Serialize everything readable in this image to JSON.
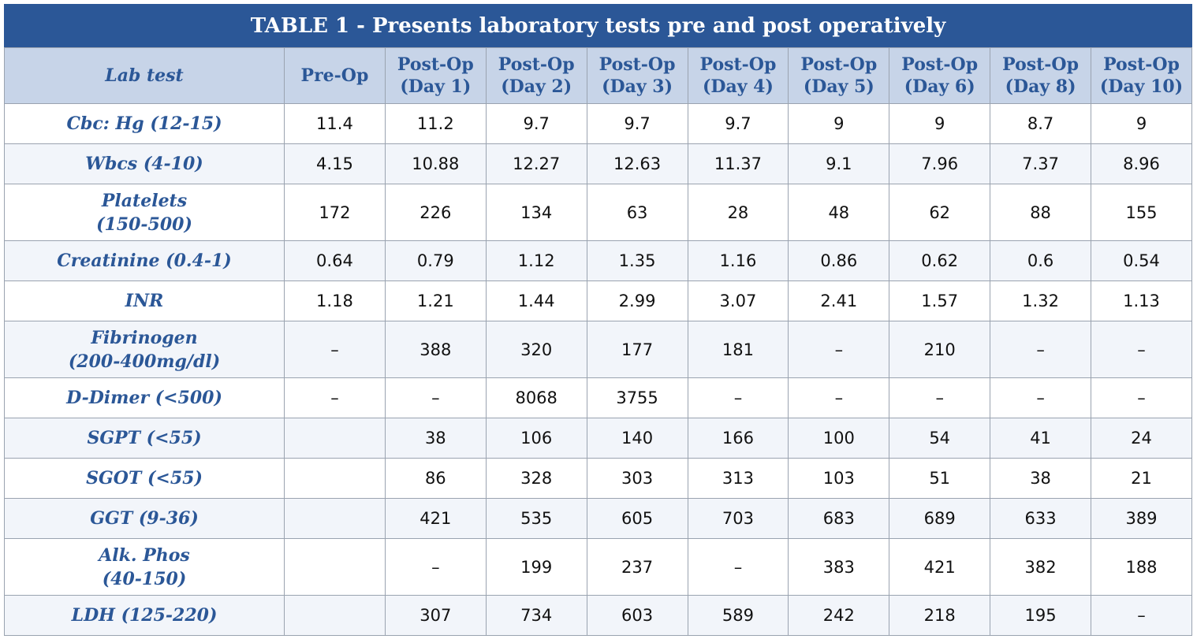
{
  "table": {
    "title": "TABLE 1 - Presents laboratory tests pre and post operatively",
    "header": [
      "Lab test",
      "Pre-Op",
      "Post-Op\n(Day 1)",
      "Post-Op\n(Day 2)",
      "Post-Op\n(Day 3)",
      "Post-Op\n(Day 4)",
      "Post-Op\n(Day 5)",
      "Post-Op\n(Day 6)",
      "Post-Op\n(Day 8)",
      "Post-Op\n(Day 10)"
    ],
    "rows": [
      [
        "Cbc: Hg (12-15)",
        "11.4",
        "11.2",
        "9.7",
        "9.7",
        "9.7",
        "9",
        "9",
        "8.7",
        "9"
      ],
      [
        "Wbcs (4-10)",
        "4.15",
        "10.88",
        "12.27",
        "12.63",
        "11.37",
        "9.1",
        "7.96",
        "7.37",
        "8.96"
      ],
      [
        "Platelets\n(150-500)",
        "172",
        "226",
        "134",
        "63",
        "28",
        "48",
        "62",
        "88",
        "155"
      ],
      [
        "Creatinine (0.4-1)",
        "0.64",
        "0.79",
        "1.12",
        "1.35",
        "1.16",
        "0.86",
        "0.62",
        "0.6",
        "0.54"
      ],
      [
        "INR",
        "1.18",
        "1.21",
        "1.44",
        "2.99",
        "3.07",
        "2.41",
        "1.57",
        "1.32",
        "1.13"
      ],
      [
        "Fibrinogen\n(200-400mg/dl)",
        "–",
        "388",
        "320",
        "177",
        "181",
        "–",
        "210",
        "–",
        "–"
      ],
      [
        "D-Dimer (<500)",
        "–",
        "–",
        "8068",
        "3755",
        "–",
        "–",
        "–",
        "–",
        "–"
      ],
      [
        "SGPT (<55)",
        null,
        "38",
        "106",
        "140",
        "166",
        "100",
        "54",
        "41",
        "24"
      ],
      [
        "SGOT (<55)",
        null,
        "86",
        "328",
        "303",
        "313",
        "103",
        "51",
        "38",
        "21"
      ],
      [
        "GGT (9-36)",
        null,
        "421",
        "535",
        "605",
        "703",
        "683",
        "689",
        "633",
        "389"
      ],
      [
        "Alk. Phos\n(40-150)",
        null,
        "–",
        "199",
        "237",
        "–",
        "383",
        "421",
        "382",
        "188"
      ],
      [
        "LDH (125-220)",
        null,
        "307",
        "734",
        "603",
        "589",
        "242",
        "218",
        "195",
        "–"
      ]
    ]
  }
}
